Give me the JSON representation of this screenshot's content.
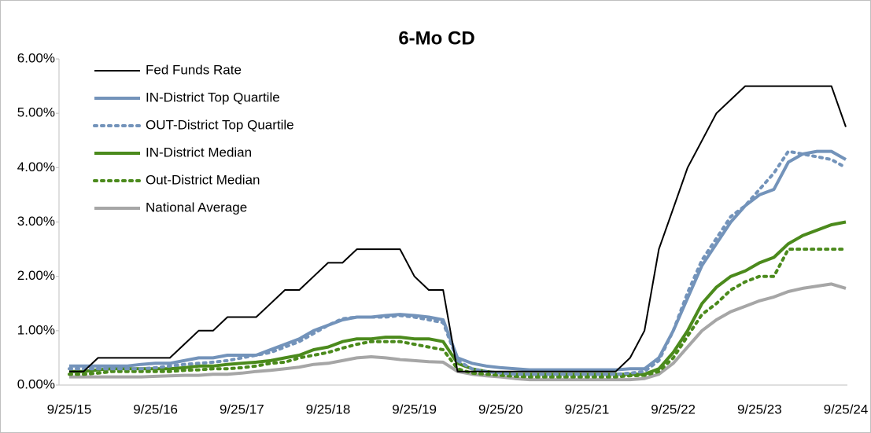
{
  "chart_data": {
    "type": "line",
    "title": "6-Mo CD",
    "categories": [
      "9/25/15",
      null,
      null,
      null,
      null,
      null,
      "9/25/16",
      null,
      null,
      null,
      null,
      null,
      "9/25/17",
      null,
      null,
      null,
      null,
      null,
      "9/25/18",
      null,
      null,
      null,
      null,
      null,
      "9/25/19",
      null,
      null,
      null,
      null,
      null,
      "9/25/20",
      null,
      null,
      null,
      null,
      null,
      "9/25/21",
      null,
      null,
      null,
      null,
      null,
      "9/25/22",
      null,
      null,
      null,
      null,
      null,
      "9/25/23",
      null,
      null,
      null,
      null,
      null,
      "9/25/24"
    ],
    "series": [
      {
        "name": "Fed Funds Rate",
        "color": "#000000",
        "style": "solid",
        "width": 2,
        "values": [
          0.25,
          0.25,
          0.5,
          0.5,
          0.5,
          0.5,
          0.5,
          0.5,
          0.75,
          1.0,
          1.0,
          1.25,
          1.25,
          1.25,
          1.5,
          1.75,
          1.75,
          2.0,
          2.25,
          2.25,
          2.5,
          2.5,
          2.5,
          2.5,
          2.0,
          1.75,
          1.75,
          0.25,
          0.25,
          0.25,
          0.25,
          0.25,
          0.25,
          0.25,
          0.25,
          0.25,
          0.25,
          0.25,
          0.25,
          0.5,
          1.0,
          2.5,
          3.25,
          4.0,
          4.5,
          5.0,
          5.25,
          5.5,
          5.5,
          5.5,
          5.5,
          5.5,
          5.5,
          5.5,
          4.75
        ]
      },
      {
        "name": "IN-District Top Quartile",
        "color": "#7393ba",
        "style": "solid",
        "width": 4,
        "values": [
          0.35,
          0.35,
          0.35,
          0.35,
          0.35,
          0.38,
          0.4,
          0.4,
          0.45,
          0.5,
          0.5,
          0.55,
          0.55,
          0.55,
          0.65,
          0.75,
          0.85,
          1.0,
          1.1,
          1.2,
          1.25,
          1.25,
          1.28,
          1.3,
          1.28,
          1.25,
          1.2,
          0.5,
          0.4,
          0.35,
          0.32,
          0.3,
          0.28,
          0.28,
          0.28,
          0.28,
          0.28,
          0.28,
          0.28,
          0.3,
          0.3,
          0.5,
          1.0,
          1.6,
          2.2,
          2.6,
          3.0,
          3.3,
          3.5,
          3.6,
          4.1,
          4.25,
          4.3,
          4.3,
          4.15
        ]
      },
      {
        "name": "OUT-District Top Quartile",
        "color": "#7393ba",
        "style": "dotted",
        "width": 4,
        "values": [
          0.3,
          0.3,
          0.3,
          0.3,
          0.3,
          0.3,
          0.32,
          0.35,
          0.38,
          0.4,
          0.42,
          0.45,
          0.5,
          0.55,
          0.6,
          0.7,
          0.8,
          0.95,
          1.1,
          1.22,
          1.25,
          1.25,
          1.25,
          1.28,
          1.25,
          1.2,
          1.15,
          0.45,
          0.3,
          0.25,
          0.22,
          0.2,
          0.2,
          0.2,
          0.2,
          0.2,
          0.2,
          0.2,
          0.2,
          0.22,
          0.25,
          0.45,
          1.0,
          1.7,
          2.3,
          2.7,
          3.1,
          3.3,
          3.6,
          3.9,
          4.3,
          4.25,
          4.2,
          4.15,
          4.0
        ]
      },
      {
        "name": "IN-District Median",
        "color": "#4b8a1c",
        "style": "solid",
        "width": 4,
        "values": [
          0.25,
          0.25,
          0.28,
          0.3,
          0.3,
          0.3,
          0.3,
          0.3,
          0.32,
          0.35,
          0.35,
          0.38,
          0.4,
          0.42,
          0.45,
          0.5,
          0.55,
          0.65,
          0.7,
          0.8,
          0.85,
          0.85,
          0.88,
          0.88,
          0.85,
          0.85,
          0.8,
          0.4,
          0.3,
          0.25,
          0.22,
          0.2,
          0.2,
          0.2,
          0.2,
          0.2,
          0.2,
          0.2,
          0.2,
          0.2,
          0.2,
          0.3,
          0.6,
          1.0,
          1.5,
          1.8,
          2.0,
          2.1,
          2.25,
          2.35,
          2.6,
          2.75,
          2.85,
          2.95,
          3.0
        ]
      },
      {
        "name": "Out-District Median",
        "color": "#4b8a1c",
        "style": "dotted",
        "width": 4,
        "values": [
          0.2,
          0.2,
          0.22,
          0.25,
          0.25,
          0.25,
          0.25,
          0.25,
          0.27,
          0.28,
          0.3,
          0.3,
          0.32,
          0.35,
          0.4,
          0.42,
          0.5,
          0.55,
          0.6,
          0.68,
          0.75,
          0.8,
          0.8,
          0.8,
          0.75,
          0.7,
          0.65,
          0.3,
          0.22,
          0.2,
          0.18,
          0.16,
          0.15,
          0.15,
          0.15,
          0.15,
          0.15,
          0.15,
          0.15,
          0.17,
          0.18,
          0.25,
          0.5,
          0.9,
          1.3,
          1.5,
          1.75,
          1.9,
          2.0,
          2.0,
          2.5,
          2.5,
          2.5,
          2.5,
          2.5
        ]
      },
      {
        "name": "National Average",
        "color": "#a6a6a6",
        "style": "solid",
        "width": 4,
        "values": [
          0.15,
          0.15,
          0.15,
          0.15,
          0.15,
          0.15,
          0.16,
          0.17,
          0.18,
          0.18,
          0.2,
          0.2,
          0.22,
          0.25,
          0.27,
          0.3,
          0.33,
          0.38,
          0.4,
          0.45,
          0.5,
          0.52,
          0.5,
          0.47,
          0.45,
          0.43,
          0.42,
          0.25,
          0.2,
          0.17,
          0.15,
          0.12,
          0.1,
          0.1,
          0.1,
          0.1,
          0.1,
          0.1,
          0.1,
          0.1,
          0.12,
          0.2,
          0.4,
          0.7,
          1.0,
          1.2,
          1.35,
          1.45,
          1.55,
          1.62,
          1.72,
          1.78,
          1.82,
          1.86,
          1.78
        ]
      }
    ],
    "ylim": [
      0,
      6
    ],
    "yticks": [
      {
        "value": 0,
        "label": "0.00%"
      },
      {
        "value": 1,
        "label": "1.00%"
      },
      {
        "value": 2,
        "label": "2.00%"
      },
      {
        "value": 3,
        "label": "3.00%"
      },
      {
        "value": 4,
        "label": "4.00%"
      },
      {
        "value": 5,
        "label": "5.00%"
      },
      {
        "value": 6,
        "label": "6.00%"
      }
    ],
    "grid": false,
    "legend": "upper left"
  }
}
